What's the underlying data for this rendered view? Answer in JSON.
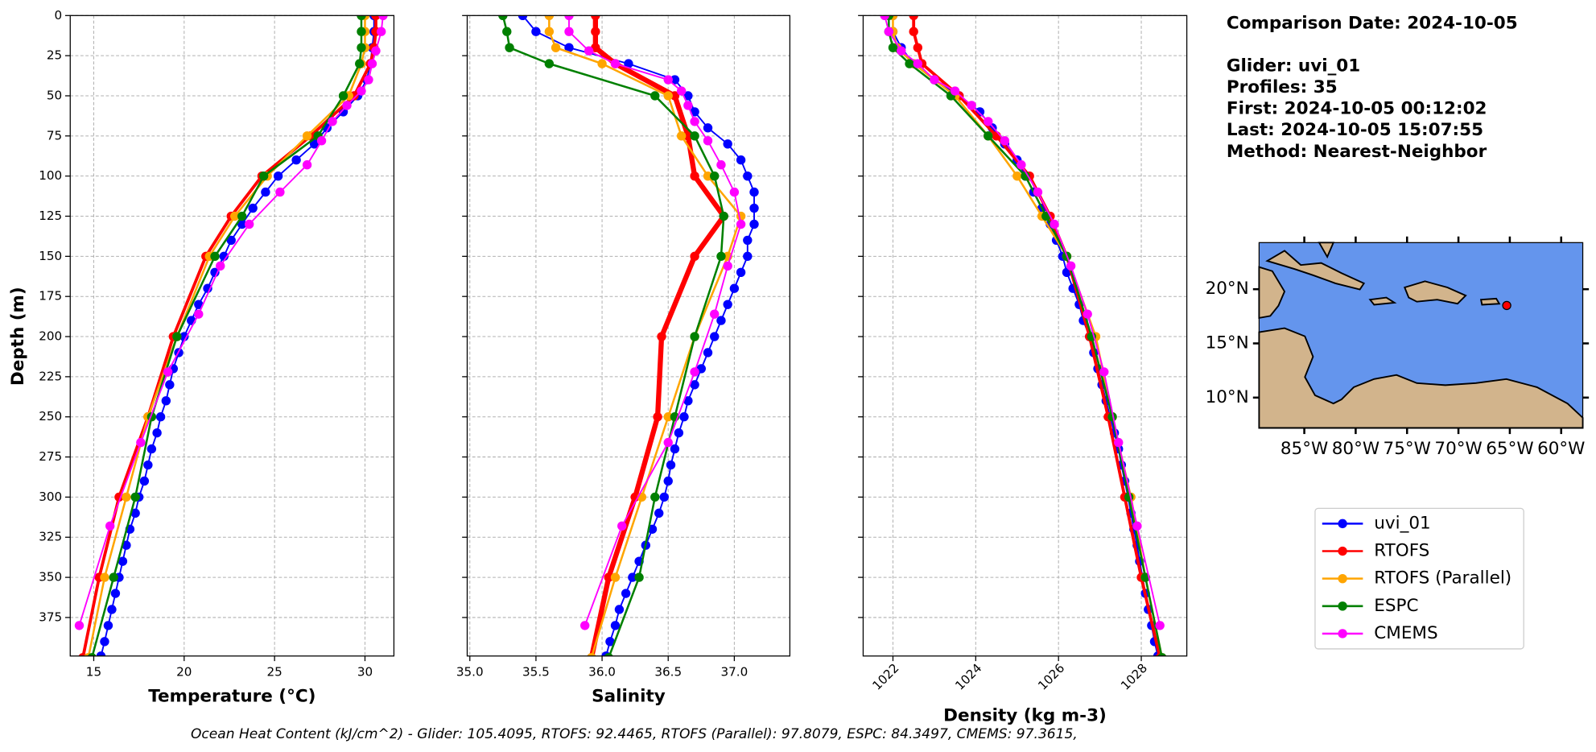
{
  "chart_data": [
    {
      "type": "line",
      "xlabel": "Temperature (°C)",
      "ylabel": "Depth (m)",
      "xlim": [
        13.7,
        31.6
      ],
      "ylim": [
        0,
        399
      ],
      "y_inverted": true,
      "xticks": [
        15,
        20,
        25,
        30
      ],
      "yticks": [
        0,
        25,
        50,
        75,
        100,
        125,
        150,
        175,
        200,
        225,
        250,
        275,
        300,
        325,
        350,
        375
      ],
      "grid": true,
      "series": [
        {
          "name": "uvi_01",
          "color": "#0000ff",
          "linewidth": 1.5,
          "y": [
            0,
            10,
            20,
            30,
            40,
            50,
            60,
            70,
            80,
            90,
            100,
            110,
            120,
            130,
            140,
            150,
            160,
            170,
            180,
            190,
            200,
            210,
            220,
            230,
            240,
            250,
            260,
            270,
            280,
            290,
            300,
            310,
            320,
            330,
            340,
            350,
            360,
            370,
            380,
            390,
            399
          ],
          "x": [
            30.5,
            30.5,
            30.4,
            30.3,
            30.1,
            29.6,
            28.8,
            27.9,
            27.2,
            26.2,
            25.2,
            24.5,
            23.8,
            23.2,
            22.6,
            22.2,
            21.7,
            21.3,
            20.8,
            20.4,
            20.0,
            19.7,
            19.4,
            19.2,
            19.0,
            18.7,
            18.5,
            18.2,
            18.0,
            17.8,
            17.5,
            17.3,
            17.0,
            16.8,
            16.6,
            16.4,
            16.2,
            16.0,
            15.8,
            15.6,
            15.4
          ]
        },
        {
          "name": "RTOFS",
          "color": "#ff0000",
          "linewidth": 3,
          "y": [
            0,
            10,
            20,
            30,
            50,
            75,
            100,
            125,
            150,
            200,
            250,
            300,
            350,
            400
          ],
          "x": [
            30.6,
            30.6,
            30.5,
            30.3,
            29.4,
            27.0,
            24.3,
            22.6,
            21.2,
            19.4,
            18.0,
            16.4,
            15.3,
            14.4
          ]
        },
        {
          "name": "RTOFS (Parallel)",
          "color": "#ffa500",
          "linewidth": 2,
          "y": [
            0,
            10,
            20,
            30,
            50,
            75,
            100,
            125,
            150,
            200,
            250,
            300,
            350,
            400
          ],
          "x": [
            30.0,
            30.0,
            30.0,
            29.8,
            29.1,
            26.8,
            24.6,
            22.8,
            21.4,
            19.6,
            18.0,
            16.8,
            15.6,
            14.7
          ]
        },
        {
          "name": "ESPC",
          "color": "#008000",
          "linewidth": 2,
          "y": [
            0,
            10,
            20,
            30,
            50,
            75,
            100,
            125,
            150,
            200,
            250,
            300,
            350,
            400
          ],
          "x": [
            29.8,
            29.8,
            29.8,
            29.7,
            28.8,
            27.4,
            24.4,
            23.2,
            21.7,
            19.6,
            18.2,
            17.3,
            16.1,
            14.9
          ]
        },
        {
          "name": "CMEMS",
          "color": "#ff00ff",
          "linewidth": 1.5,
          "y": [
            0,
            10,
            22,
            30,
            40,
            47,
            56,
            66,
            78,
            93,
            110,
            130,
            156,
            186,
            222,
            266,
            318,
            380
          ],
          "x": [
            31.0,
            30.9,
            30.6,
            30.4,
            30.2,
            29.8,
            29.0,
            28.2,
            27.6,
            26.8,
            25.3,
            23.6,
            22.0,
            20.8,
            19.1,
            17.6,
            15.9,
            14.2
          ]
        }
      ]
    },
    {
      "type": "line",
      "xlabel": "Salinity",
      "xlim": [
        34.98,
        37.42
      ],
      "ylim": [
        0,
        399
      ],
      "y_inverted": true,
      "xticks": [
        {
          "value": 35,
          "label": "35.0"
        },
        35.5,
        {
          "value": 36,
          "label": "36.0"
        },
        36.5,
        {
          "value": 37,
          "label": "37.0"
        }
      ],
      "grid": true,
      "series": [
        {
          "color": "#0000ff",
          "linewidth": 1.5,
          "y": [
            0,
            10,
            20,
            30,
            40,
            50,
            60,
            70,
            80,
            90,
            100,
            110,
            120,
            130,
            140,
            150,
            160,
            170,
            180,
            190,
            200,
            210,
            220,
            230,
            240,
            250,
            260,
            270,
            280,
            290,
            300,
            310,
            320,
            330,
            340,
            350,
            360,
            370,
            380,
            390,
            399
          ],
          "x": [
            35.4,
            35.5,
            35.75,
            36.2,
            36.55,
            36.65,
            36.7,
            36.8,
            36.95,
            37.05,
            37.1,
            37.15,
            37.15,
            37.15,
            37.1,
            37.1,
            37.05,
            37.0,
            36.95,
            36.9,
            36.85,
            36.8,
            36.75,
            36.7,
            36.65,
            36.62,
            36.58,
            36.55,
            36.52,
            36.5,
            36.47,
            36.43,
            36.38,
            36.33,
            36.28,
            36.23,
            36.18,
            36.13,
            36.1,
            36.06,
            36.03
          ]
        },
        {
          "color": "#ff0000",
          "linewidth": 5,
          "y": [
            0,
            10,
            20,
            30,
            50,
            75,
            100,
            125,
            150,
            200,
            250,
            300,
            350,
            400
          ],
          "x": [
            35.95,
            35.95,
            35.95,
            36.1,
            36.55,
            36.65,
            36.7,
            36.92,
            36.7,
            36.45,
            36.42,
            36.25,
            36.05,
            35.92
          ]
        },
        {
          "color": "#ffa500",
          "linewidth": 2,
          "y": [
            0,
            10,
            20,
            30,
            50,
            75,
            100,
            125,
            150,
            200,
            250,
            300,
            350,
            400
          ],
          "x": [
            35.6,
            35.6,
            35.65,
            36.0,
            36.5,
            36.6,
            36.8,
            37.05,
            36.95,
            36.7,
            36.5,
            36.3,
            36.1,
            35.92
          ]
        },
        {
          "color": "#008000",
          "linewidth": 2,
          "y": [
            0,
            10,
            20,
            30,
            50,
            75,
            100,
            125,
            150,
            200,
            250,
            300,
            350,
            400
          ],
          "x": [
            35.25,
            35.28,
            35.3,
            35.6,
            36.4,
            36.7,
            36.85,
            36.92,
            36.9,
            36.7,
            36.55,
            36.4,
            36.28,
            36.05
          ]
        },
        {
          "color": "#ff00ff",
          "linewidth": 1.5,
          "y": [
            0,
            10,
            22,
            30,
            40,
            47,
            56,
            66,
            78,
            93,
            110,
            130,
            156,
            186,
            222,
            266,
            318,
            380
          ],
          "x": [
            35.75,
            35.75,
            35.9,
            36.1,
            36.5,
            36.6,
            36.65,
            36.7,
            36.8,
            36.9,
            37.0,
            37.05,
            36.95,
            36.85,
            36.7,
            36.5,
            36.15,
            35.87
          ]
        }
      ]
    },
    {
      "type": "line",
      "xlabel": "Density (kg m-3)",
      "xlim": [
        1021.28,
        1029.1
      ],
      "ylim": [
        0,
        399
      ],
      "y_inverted": true,
      "xticks": [
        1022,
        1024,
        1026,
        1028
      ],
      "xtick_rotation": 45,
      "grid": true,
      "series": [
        {
          "color": "#0000ff",
          "linewidth": 1.5,
          "y": [
            0,
            10,
            20,
            30,
            40,
            50,
            60,
            70,
            80,
            90,
            100,
            110,
            120,
            130,
            140,
            150,
            160,
            170,
            180,
            190,
            200,
            210,
            220,
            230,
            240,
            250,
            260,
            270,
            280,
            290,
            300,
            310,
            320,
            330,
            340,
            350,
            360,
            370,
            380,
            390,
            399
          ],
          "x": [
            1022.0,
            1022.0,
            1022.2,
            1022.5,
            1023.0,
            1023.6,
            1024.1,
            1024.4,
            1024.7,
            1025.0,
            1025.2,
            1025.4,
            1025.6,
            1025.8,
            1025.95,
            1026.1,
            1026.2,
            1026.35,
            1026.5,
            1026.6,
            1026.75,
            1026.85,
            1026.95,
            1027.05,
            1027.15,
            1027.25,
            1027.35,
            1027.45,
            1027.52,
            1027.6,
            1027.68,
            1027.75,
            1027.82,
            1027.9,
            1027.96,
            1028.03,
            1028.1,
            1028.17,
            1028.25,
            1028.32,
            1028.4
          ]
        },
        {
          "color": "#ff0000",
          "linewidth": 3,
          "y": [
            0,
            10,
            20,
            30,
            50,
            75,
            100,
            125,
            150,
            200,
            250,
            300,
            350,
            400
          ],
          "x": [
            1022.5,
            1022.5,
            1022.6,
            1022.7,
            1023.6,
            1024.5,
            1025.3,
            1025.8,
            1026.2,
            1026.75,
            1027.2,
            1027.6,
            1028.0,
            1028.45
          ]
        },
        {
          "color": "#ffa500",
          "linewidth": 2,
          "y": [
            0,
            10,
            20,
            30,
            50,
            75,
            100,
            125,
            150,
            200,
            250,
            300,
            350,
            400
          ],
          "x": [
            1022.0,
            1022.0,
            1022.1,
            1022.5,
            1023.5,
            1024.3,
            1025.0,
            1025.6,
            1026.2,
            1026.9,
            1027.3,
            1027.75,
            1028.1,
            1028.5
          ]
        },
        {
          "color": "#008000",
          "linewidth": 2,
          "y": [
            0,
            10,
            20,
            30,
            50,
            75,
            100,
            125,
            150,
            200,
            250,
            300,
            350,
            400
          ],
          "x": [
            1021.9,
            1021.9,
            1022.0,
            1022.4,
            1023.4,
            1024.3,
            1025.2,
            1025.7,
            1026.2,
            1026.8,
            1027.3,
            1027.7,
            1028.1,
            1028.5
          ]
        },
        {
          "color": "#ff00ff",
          "linewidth": 1.5,
          "y": [
            0,
            10,
            22,
            30,
            40,
            47,
            56,
            66,
            78,
            93,
            110,
            130,
            156,
            186,
            222,
            266,
            318,
            380
          ],
          "x": [
            1021.8,
            1021.9,
            1022.2,
            1022.6,
            1023.0,
            1023.5,
            1023.9,
            1024.3,
            1024.7,
            1025.1,
            1025.5,
            1025.9,
            1026.3,
            1026.7,
            1027.1,
            1027.45,
            1027.9,
            1028.45
          ]
        }
      ]
    }
  ],
  "info": [
    "Comparison Date: 2024-10-05",
    "Glider: uvi_01",
    "Profiles: 35",
    "First: 2024-10-05 00:12:02",
    "Last: 2024-10-05 15:07:55",
    "Method: Nearest-Neighbor"
  ],
  "map": {
    "xlim": [
      -89.4,
      -57.9
    ],
    "ylim": [
      7.2,
      24.3
    ],
    "xticks": [
      {
        "value": -85,
        "label": "85°W"
      },
      {
        "value": -80,
        "label": "80°W"
      },
      {
        "value": -75,
        "label": "75°W"
      },
      {
        "value": -70,
        "label": "70°W"
      },
      {
        "value": -65,
        "label": "65°W"
      },
      {
        "value": -60,
        "label": "60°W"
      }
    ],
    "yticks": [
      {
        "value": 10,
        "label": "10°N"
      },
      {
        "value": 15,
        "label": "15°N"
      },
      {
        "value": 20,
        "label": "20°N"
      }
    ],
    "marker": {
      "lon": -65.3,
      "lat": 18.5,
      "color": "#ff0000"
    }
  },
  "footnote": "Ocean Heat Content (kJ/cm^2) - Glider: 105.4095,  RTOFS: 92.4465,  RTOFS (Parallel): 97.8079,  ESPC: 84.3497,  CMEMS: 97.3615,"
}
